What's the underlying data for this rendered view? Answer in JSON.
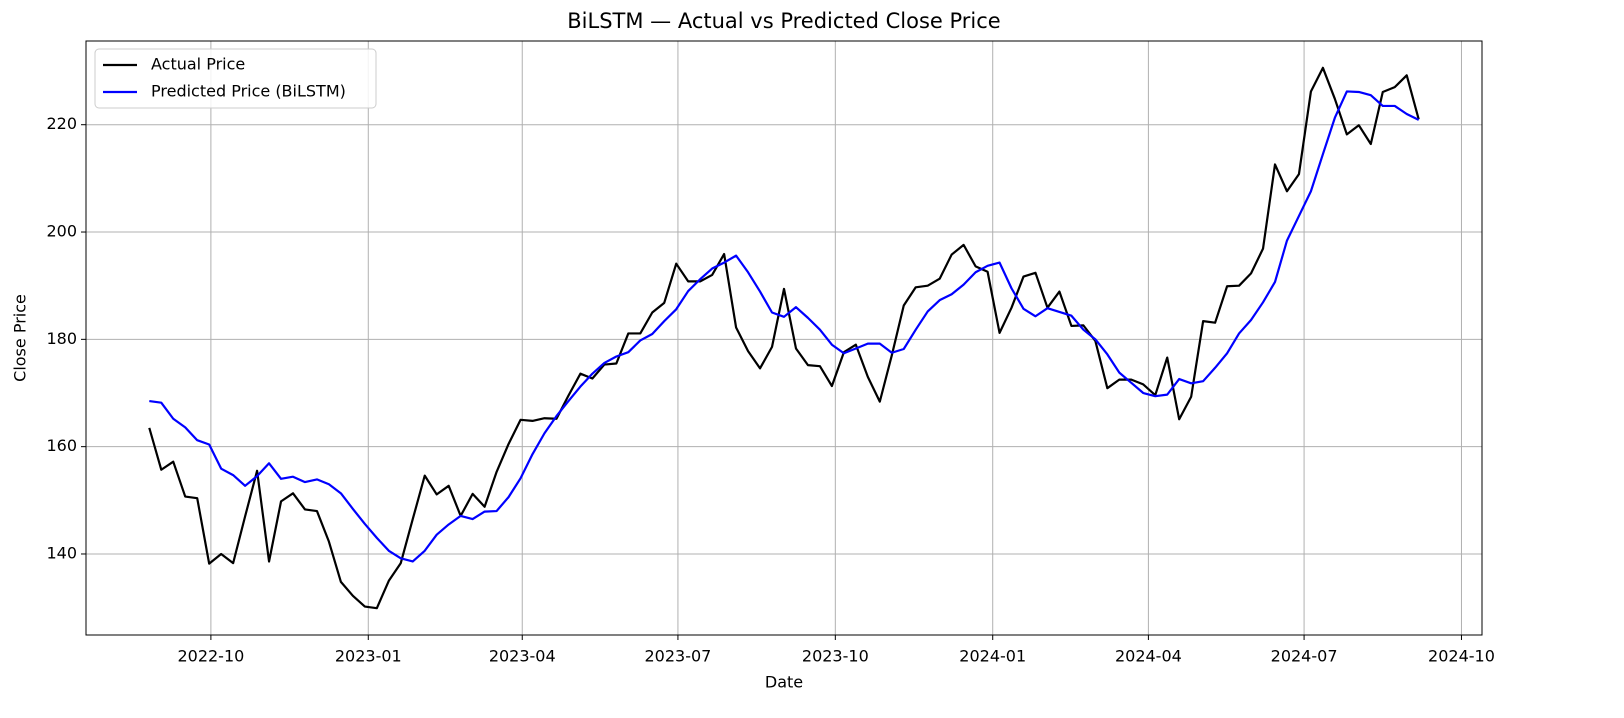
{
  "chart_data": {
    "type": "line",
    "title": "BiLSTM — Actual vs Predicted Close Price",
    "x_label": "Date",
    "y_label": "Close Price",
    "x": [
      "2022-08-26",
      "2022-09-02",
      "2022-09-09",
      "2022-09-16",
      "2022-09-23",
      "2022-09-30",
      "2022-10-07",
      "2022-10-14",
      "2022-10-21",
      "2022-10-28",
      "2022-11-04",
      "2022-11-11",
      "2022-11-18",
      "2022-11-25",
      "2022-12-02",
      "2022-12-09",
      "2022-12-16",
      "2022-12-23",
      "2022-12-30",
      "2023-01-06",
      "2023-01-13",
      "2023-01-20",
      "2023-01-27",
      "2023-02-03",
      "2023-02-10",
      "2023-02-17",
      "2023-02-24",
      "2023-03-03",
      "2023-03-10",
      "2023-03-17",
      "2023-03-24",
      "2023-03-31",
      "2023-04-07",
      "2023-04-14",
      "2023-04-21",
      "2023-04-28",
      "2023-05-05",
      "2023-05-12",
      "2023-05-19",
      "2023-05-26",
      "2023-06-02",
      "2023-06-09",
      "2023-06-16",
      "2023-06-23",
      "2023-06-30",
      "2023-07-07",
      "2023-07-14",
      "2023-07-21",
      "2023-07-28",
      "2023-08-04",
      "2023-08-11",
      "2023-08-18",
      "2023-08-25",
      "2023-09-01",
      "2023-09-08",
      "2023-09-15",
      "2023-09-22",
      "2023-09-29",
      "2023-10-06",
      "2023-10-13",
      "2023-10-20",
      "2023-10-27",
      "2023-11-03",
      "2023-11-10",
      "2023-11-17",
      "2023-11-24",
      "2023-12-01",
      "2023-12-08",
      "2023-12-15",
      "2023-12-22",
      "2023-12-29",
      "2024-01-05",
      "2024-01-12",
      "2024-01-19",
      "2024-01-26",
      "2024-02-02",
      "2024-02-09",
      "2024-02-16",
      "2024-02-23",
      "2024-03-01",
      "2024-03-08",
      "2024-03-15",
      "2024-03-22",
      "2024-03-29",
      "2024-04-05",
      "2024-04-12",
      "2024-04-19",
      "2024-04-26",
      "2024-05-03",
      "2024-05-10",
      "2024-05-17",
      "2024-05-24",
      "2024-05-31",
      "2024-06-07",
      "2024-06-14",
      "2024-06-21",
      "2024-06-28",
      "2024-07-05",
      "2024-07-12",
      "2024-07-19",
      "2024-07-26",
      "2024-08-02",
      "2024-08-09",
      "2024-08-16",
      "2024-08-23",
      "2024-08-30",
      "2024-09-06"
    ],
    "series": [
      {
        "name": "Actual Price",
        "color": "#000000",
        "values": [
          163.5,
          155.7,
          157.2,
          150.7,
          150.4,
          138.2,
          140.0,
          138.3,
          147.0,
          155.5,
          138.6,
          149.8,
          151.3,
          148.3,
          148.0,
          142.3,
          134.8,
          132.2,
          130.2,
          129.9,
          135.0,
          138.3,
          146.5,
          154.6,
          151.1,
          152.7,
          147.1,
          151.2,
          148.8,
          155.3,
          160.5,
          165.0,
          164.8,
          165.3,
          165.2,
          169.5,
          173.6,
          172.7,
          175.3,
          175.5,
          181.1,
          181.1,
          185.0,
          186.8,
          194.1,
          190.8,
          190.8,
          192.0,
          195.9,
          182.2,
          177.8,
          174.6,
          178.6,
          189.4,
          178.3,
          175.2,
          175.0,
          171.3,
          177.6,
          179.0,
          173.0,
          168.4,
          177.0,
          186.3,
          189.7,
          190.0,
          191.3,
          195.8,
          197.6,
          193.6,
          192.6,
          181.2,
          185.9,
          191.7,
          192.4,
          185.9,
          188.9,
          182.5,
          182.6,
          179.7,
          170.9,
          172.5,
          172.5,
          171.6,
          169.6,
          176.6,
          165.1,
          169.3,
          183.4,
          183.1,
          189.9,
          190.0,
          192.3,
          196.9,
          212.6,
          207.6,
          210.8,
          226.2,
          230.6,
          224.8,
          218.2,
          219.9,
          216.4,
          226.1,
          227.0,
          229.2,
          221.0
        ]
      },
      {
        "name": "Predicted Price (BiLSTM)",
        "color": "#0000ff",
        "values": [
          168.5,
          168.2,
          165.2,
          163.6,
          161.2,
          160.4,
          155.9,
          154.7,
          152.7,
          154.5,
          156.9,
          154.0,
          154.4,
          153.4,
          153.9,
          153.0,
          151.3,
          148.4,
          145.6,
          143.0,
          140.6,
          139.2,
          138.6,
          140.6,
          143.6,
          145.5,
          147.1,
          146.5,
          147.9,
          148.0,
          150.6,
          154.1,
          158.6,
          162.5,
          165.7,
          168.5,
          171.2,
          173.6,
          175.6,
          176.8,
          177.6,
          179.8,
          181.0,
          183.4,
          185.6,
          189.0,
          191.2,
          193.2,
          194.3,
          195.6,
          192.5,
          188.9,
          185.0,
          184.2,
          186.0,
          184.0,
          181.8,
          179.0,
          177.4,
          178.3,
          179.2,
          179.2,
          177.5,
          178.2,
          181.8,
          185.2,
          187.3,
          188.4,
          190.2,
          192.5,
          193.7,
          194.3,
          189.5,
          185.7,
          184.3,
          185.8,
          185.1,
          184.4,
          181.8,
          180.0,
          177.2,
          173.8,
          171.9,
          170.0,
          169.4,
          169.7,
          172.6,
          171.8,
          172.2,
          174.7,
          177.4,
          181.1,
          183.6,
          186.9,
          190.7,
          198.4,
          203.0,
          207.6,
          214.5,
          221.3,
          226.2,
          226.1,
          225.5,
          223.5,
          223.5,
          222.0,
          220.9
        ]
      }
    ],
    "xlim": [
      "2022-07-20",
      "2024-10-13"
    ],
    "xticks": [
      "2022-10",
      "2023-01",
      "2023-04",
      "2023-07",
      "2023-10",
      "2024-01",
      "2024-04",
      "2024-07",
      "2024-10"
    ],
    "ylim": [
      124.9,
      235.6
    ],
    "yticks": [
      140,
      160,
      180,
      200,
      220
    ],
    "grid": true,
    "legend": "upper left"
  }
}
